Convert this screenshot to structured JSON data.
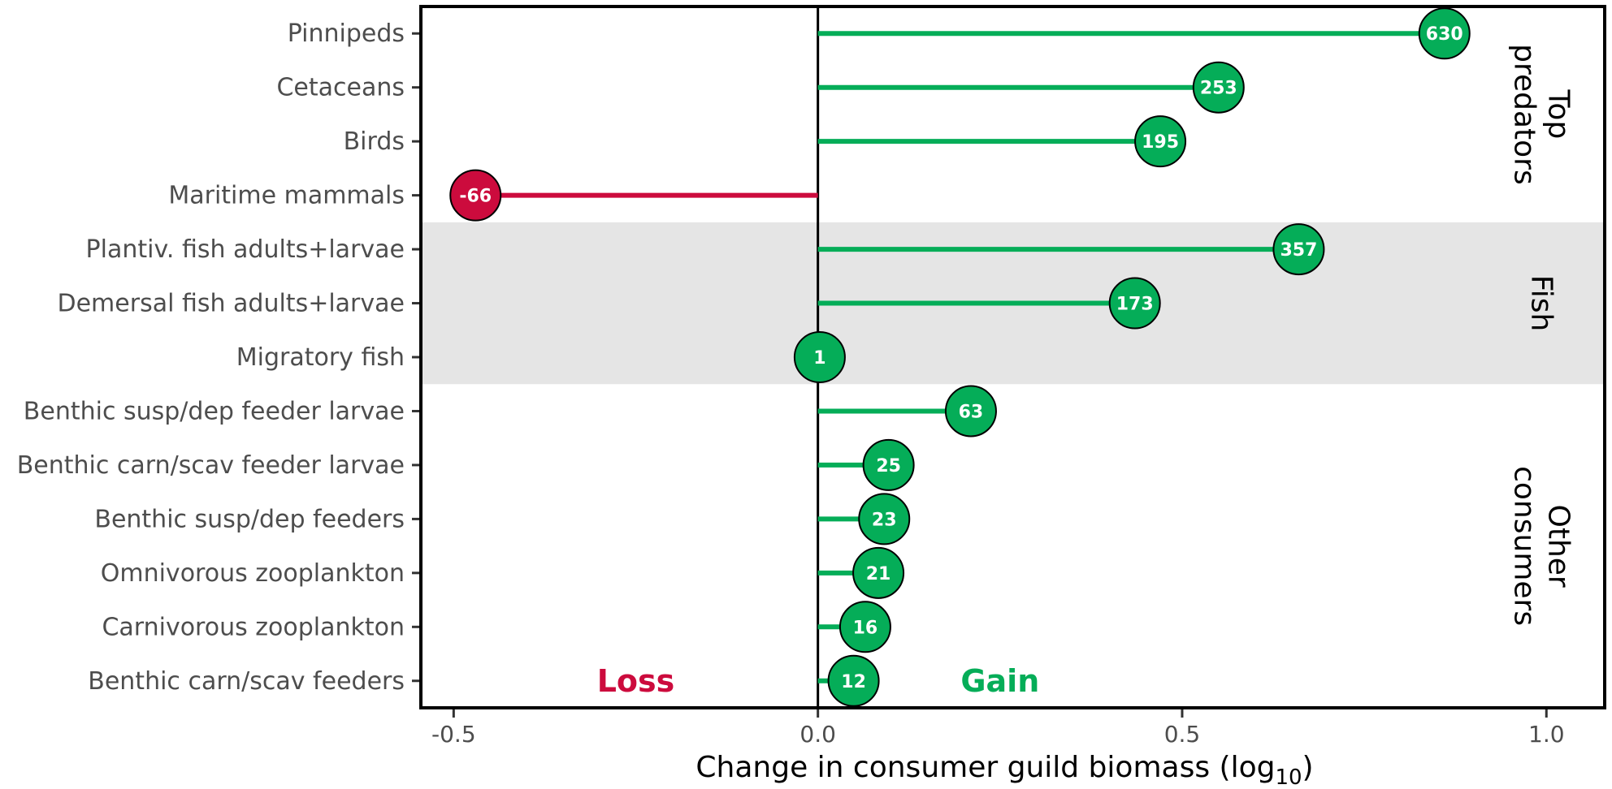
{
  "chart_data": {
    "type": "lollipop",
    "xlabel": "Change in consumer guild biomass (log",
    "xlabel_sub": "10",
    "xlabel_end": ")",
    "xlim": [
      -0.545,
      1.08
    ],
    "xticks": [
      -0.5,
      0.0,
      0.5,
      1.0
    ],
    "xtick_labels": [
      "-0.5",
      "0.0",
      "0.5",
      "1.0"
    ],
    "categories": [
      "Pinnipeds",
      "Cetaceans",
      "Birds",
      "Maritime mammals",
      "Plantiv. fish adults+larvae",
      "Demersal fish adults+larvae",
      "Migratory fish",
      "Benthic susp/dep feeder larvae",
      "Benthic carn/scav feeder larvae",
      "Benthic susp/dep feeders",
      "Omnivorous zooplankton",
      "Carnivorous zooplankton",
      "Benthic carn/scav feeders"
    ],
    "values": [
      0.86,
      0.55,
      0.47,
      -0.47,
      0.66,
      0.435,
      0.0025,
      0.21,
      0.097,
      0.091,
      0.083,
      0.065,
      0.049
    ],
    "labels": [
      "630",
      "253",
      "195",
      "-66",
      "357",
      "173",
      "1",
      "63",
      "25",
      "23",
      "21",
      "16",
      "12"
    ],
    "groups": [
      {
        "name_lines": [
          "Top",
          "predators"
        ],
        "start": 0,
        "end": 3,
        "shaded": false
      },
      {
        "name_lines": [
          "Fish"
        ],
        "start": 4,
        "end": 6,
        "shaded": true
      },
      {
        "name_lines": [
          "Other",
          "consumers"
        ],
        "start": 7,
        "end": 12,
        "shaded": false
      }
    ],
    "annotations": {
      "loss": "Loss",
      "gain": "Gain"
    },
    "colors": {
      "gain": "#05AD58",
      "loss": "#CC0B3D",
      "shade": "#E5E5E5"
    },
    "grid": false,
    "legend": "none"
  }
}
